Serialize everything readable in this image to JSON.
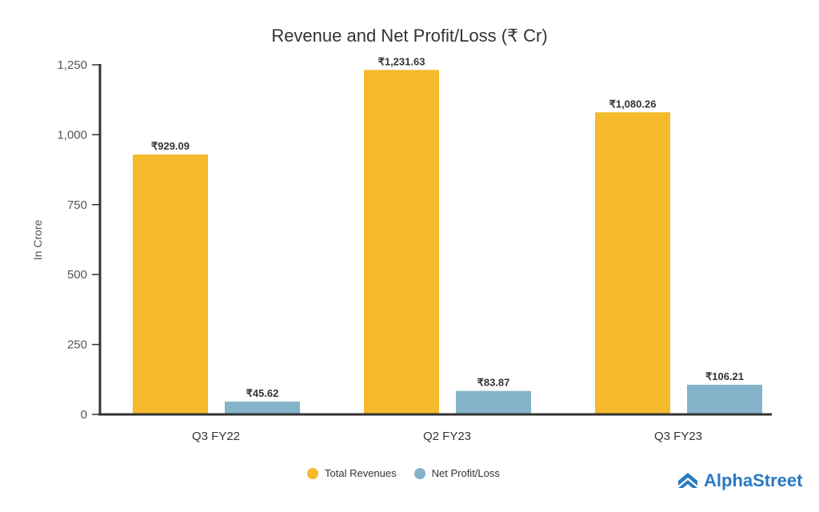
{
  "chart_data": {
    "type": "bar",
    "title": "Revenue and Net Profit/Loss (₹ Cr)",
    "xlabel": "",
    "ylabel": "In Crore",
    "ylim": [
      0,
      1250
    ],
    "yticks": [
      0,
      250,
      500,
      750,
      1000,
      1250
    ],
    "ytick_labels": [
      "0",
      "250",
      "500",
      "750",
      "1,000",
      "1,250"
    ],
    "categories": [
      "Q3 FY22",
      "Q2 FY23",
      "Q3 FY23"
    ],
    "series": [
      {
        "name": "Total Revenues",
        "color": "#F5B92C",
        "values": [
          929.09,
          1231.63,
          1080.26
        ],
        "labels": [
          "₹929.09",
          "₹1,231.63",
          "₹1,080.26"
        ]
      },
      {
        "name": "Net Profit/Loss",
        "color": "#84B3C9",
        "values": [
          45.62,
          83.87,
          106.21
        ],
        "labels": [
          "₹45.62",
          "₹83.87",
          "₹106.21"
        ]
      }
    ],
    "legend_position": "bottom",
    "grid": false
  },
  "brand": {
    "name": "AlphaStreet",
    "color": "#2A78C2"
  }
}
